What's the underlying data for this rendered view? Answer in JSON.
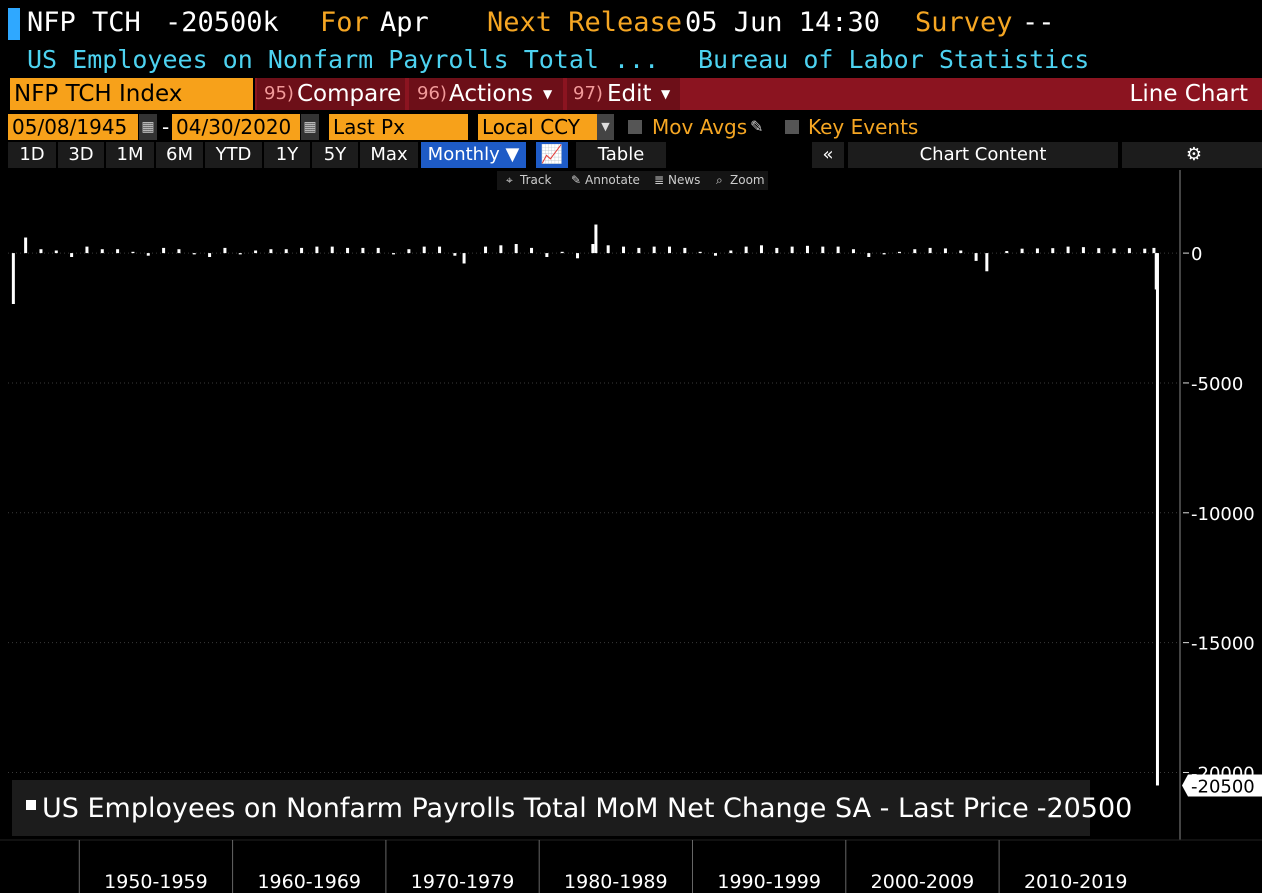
{
  "header": {
    "ticker": "NFP TCH",
    "value": "-20500k",
    "for_label": "For",
    "period": "Apr",
    "release_label": "Next Release",
    "release": "05 Jun 14:30",
    "survey_label": "Survey",
    "survey": "--",
    "description": "US Employees on Nonfarm Payrolls Total ...",
    "source": "Bureau of Labor Statistics"
  },
  "toolbar": {
    "security": "NFP TCH Index",
    "compare_num": "95)",
    "compare": "Compare",
    "actions_num": "96)",
    "actions": "Actions",
    "edit_num": "97)",
    "edit": "Edit",
    "chart_type": "Line Chart",
    "start_date": "05/08/1945",
    "date_sep": "-",
    "end_date": "04/30/2020",
    "field": "Last Px",
    "currency": "Local CCY",
    "mov_avgs": "Mov Avgs",
    "key_events": "Key Events",
    "ranges": [
      "1D",
      "3D",
      "1M",
      "6M",
      "YTD",
      "1Y",
      "5Y",
      "Max"
    ],
    "frequency": "Monthly ▼",
    "table": "Table",
    "chart_content": "Chart Content",
    "tools": [
      "Track",
      "Annotate",
      "News",
      "Zoom"
    ]
  },
  "chart_data": {
    "type": "bar",
    "series": [
      {
        "name": "US Employees on Nonfarm Payrolls Total MoM Net Change SA - Last Price",
        "color": "#ffffff",
        "x": [
          1945.7,
          1946.5,
          1947.5,
          1948.5,
          1949.5,
          1950.5,
          1951.5,
          1952.5,
          1953.5,
          1954.5,
          1955.5,
          1956.5,
          1957.5,
          1958.5,
          1959.5,
          1960.5,
          1961.5,
          1962.5,
          1963.5,
          1964.5,
          1965.5,
          1966.5,
          1967.5,
          1968.5,
          1969.5,
          1970.5,
          1971.5,
          1972.5,
          1973.5,
          1974.5,
          1975.1,
          1976.5,
          1977.5,
          1978.5,
          1979.5,
          1980.5,
          1981.5,
          1982.5,
          1983.5,
          1983.7,
          1984.5,
          1985.5,
          1986.5,
          1987.5,
          1988.5,
          1989.5,
          1990.5,
          1991.5,
          1992.5,
          1993.5,
          1994.5,
          1995.5,
          1996.5,
          1997.5,
          1998.5,
          1999.5,
          2000.5,
          2001.5,
          2002.5,
          2003.5,
          2004.5,
          2005.5,
          2006.5,
          2007.5,
          2008.5,
          2009.2,
          2010.5,
          2011.5,
          2012.5,
          2013.5,
          2014.5,
          2015.5,
          2016.5,
          2017.5,
          2018.5,
          2019.5,
          2020.1,
          2020.25,
          2020.33
        ],
        "values": [
          -1960,
          600,
          150,
          100,
          -150,
          250,
          150,
          150,
          50,
          -100,
          200,
          150,
          -50,
          -150,
          200,
          -50,
          100,
          150,
          150,
          200,
          250,
          250,
          200,
          200,
          200,
          -50,
          150,
          250,
          250,
          -100,
          -400,
          250,
          300,
          350,
          200,
          -150,
          50,
          -200,
          350,
          1100,
          300,
          250,
          200,
          250,
          250,
          200,
          50,
          -100,
          100,
          250,
          300,
          200,
          250,
          280,
          250,
          250,
          150,
          -150,
          -50,
          50,
          150,
          200,
          180,
          100,
          -300,
          -700,
          80,
          170,
          180,
          190,
          250,
          230,
          190,
          180,
          190,
          170,
          200,
          -1400,
          -20500
        ]
      }
    ],
    "xlim": [
      1945.35,
      2021.8
    ],
    "xticks": [
      {
        "value": 1950,
        "label": "1950-1959"
      },
      {
        "value": 1960,
        "label": "1960-1969"
      },
      {
        "value": 1970,
        "label": "1970-1979"
      },
      {
        "value": 1980,
        "label": "1980-1989"
      },
      {
        "value": 1990,
        "label": "1990-1999"
      },
      {
        "value": 2000,
        "label": "2000-2009"
      },
      {
        "value": 2010,
        "label": "2010-2019"
      }
    ],
    "ylim": [
      -22600,
      3200
    ],
    "yticks": [
      -20000,
      -15000,
      -10000,
      -5000,
      0
    ],
    "grid": true
  }
}
